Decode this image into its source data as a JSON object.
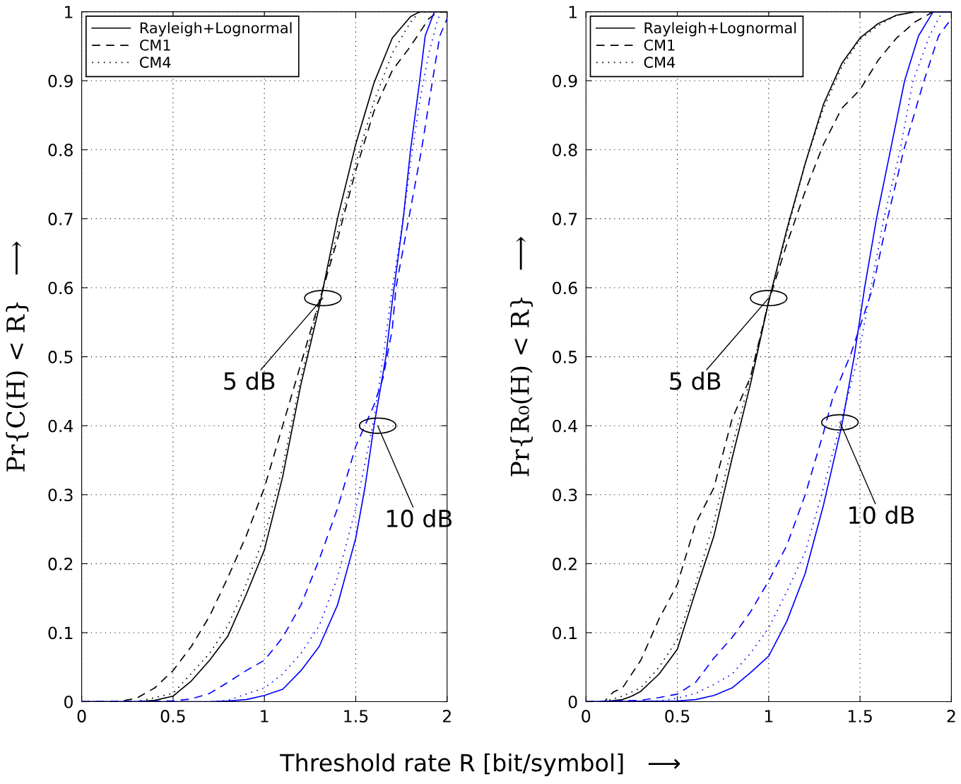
{
  "chart_data": [
    {
      "type": "line",
      "xlabel": "Threshold rate R [bit/symbol]   ⟶",
      "ylabel": "Pr{C(H) < R}   ⟶",
      "xlim": [
        0,
        2
      ],
      "ylim": [
        0,
        1
      ],
      "xticks": [
        0,
        0.5,
        1,
        1.5,
        2
      ],
      "yticks": [
        0,
        0.1,
        0.2,
        0.3,
        0.4,
        0.5,
        0.6,
        0.7,
        0.8,
        0.9,
        1
      ],
      "grid": true,
      "legend": "top left",
      "marker": "none",
      "annotations": [
        {
          "text": "5 dB",
          "x": 1.32,
          "y": 0.585
        },
        {
          "text": "10 dB",
          "x": 1.62,
          "y": 0.4
        }
      ],
      "series": [
        {
          "name": "Rayleigh+Lognormal",
          "color": "#000000",
          "line_style": "solid",
          "x": [
            0,
            0.3,
            0.4,
            0.5,
            0.6,
            0.7,
            0.8,
            0.9,
            1.0,
            1.1,
            1.2,
            1.3,
            1.4,
            1.5,
            1.6,
            1.7,
            1.8,
            1.85,
            2
          ],
          "values": [
            0,
            0,
            0.002,
            0.008,
            0.03,
            0.06,
            0.095,
            0.155,
            0.22,
            0.326,
            0.46,
            0.572,
            0.7,
            0.808,
            0.897,
            0.962,
            0.993,
            1,
            1
          ]
        },
        {
          "name": "CM1",
          "color": "#000000",
          "line_style": "dashed",
          "x": [
            0,
            0.2,
            0.3,
            0.4,
            0.5,
            0.6,
            0.7,
            0.8,
            0.9,
            1.0,
            1.1,
            1.2,
            1.3,
            1.4,
            1.5,
            1.6,
            1.7,
            1.8,
            1.85,
            1.9,
            1.95,
            2
          ],
          "values": [
            0,
            0,
            0.005,
            0.02,
            0.045,
            0.08,
            0.124,
            0.18,
            0.24,
            0.31,
            0.4,
            0.49,
            0.58,
            0.67,
            0.77,
            0.856,
            0.915,
            0.95,
            0.97,
            0.99,
            1,
            1
          ]
        },
        {
          "name": "CM4",
          "color": "#000000",
          "line_style": "dotted",
          "x": [
            0,
            0.3,
            0.5,
            0.7,
            0.8,
            0.9,
            1.0,
            1.1,
            1.2,
            1.3,
            1.4,
            1.5,
            1.6,
            1.7,
            1.8,
            1.85,
            2
          ],
          "values": [
            0,
            0,
            0.012,
            0.07,
            0.11,
            0.17,
            0.24,
            0.34,
            0.47,
            0.58,
            0.68,
            0.78,
            0.87,
            0.94,
            0.985,
            1,
            1
          ]
        },
        {
          "color": "#0000ff",
          "line_style": "solid",
          "x": [
            0,
            0.7,
            0.8,
            0.9,
            1.0,
            1.1,
            1.2,
            1.3,
            1.4,
            1.5,
            1.55,
            1.6,
            1.665,
            1.7,
            1.76,
            1.8,
            1.85,
            1.88,
            1.93
          ],
          "values": [
            0,
            0,
            0.001,
            0.003,
            0.009,
            0.018,
            0.045,
            0.08,
            0.14,
            0.237,
            0.31,
            0.4,
            0.5,
            0.58,
            0.7,
            0.8,
            0.9,
            0.965,
            1
          ]
        },
        {
          "color": "#0000ff",
          "line_style": "dashed",
          "x": [
            0,
            0.5,
            0.6,
            0.7,
            0.8,
            0.9,
            1.0,
            1.1,
            1.2,
            1.3,
            1.4,
            1.5,
            1.6,
            1.65,
            1.7,
            1.72,
            1.79,
            1.86,
            1.92,
            1.96,
            2
          ],
          "values": [
            0,
            0.001,
            0.004,
            0.012,
            0.028,
            0.045,
            0.06,
            0.093,
            0.14,
            0.206,
            0.28,
            0.37,
            0.43,
            0.47,
            0.54,
            0.6,
            0.7,
            0.8,
            0.9,
            0.965,
            0.99
          ]
        },
        {
          "color": "#0000ff",
          "line_style": "dotted",
          "x": [
            0,
            0.7,
            0.8,
            1.0,
            1.1,
            1.2,
            1.3,
            1.4,
            1.5,
            1.6,
            1.65,
            1.7,
            1.76,
            1.8,
            1.85,
            1.9,
            1.95,
            1.97,
            2
          ],
          "values": [
            0,
            0,
            0.002,
            0.02,
            0.04,
            0.07,
            0.11,
            0.18,
            0.28,
            0.41,
            0.5,
            0.6,
            0.7,
            0.78,
            0.87,
            0.94,
            0.99,
            1,
            1
          ]
        }
      ]
    },
    {
      "type": "line",
      "ylabel": "Pr{R₀(H) < R}   ⟶",
      "xlim": [
        0,
        2
      ],
      "ylim": [
        0,
        1
      ],
      "xticks": [
        0,
        0.5,
        1,
        1.5,
        2
      ],
      "yticks": [
        0,
        0.1,
        0.2,
        0.3,
        0.4,
        0.5,
        0.6,
        0.7,
        0.8,
        0.9,
        1
      ],
      "grid": true,
      "legend": "top left",
      "marker": "none",
      "annotations": [
        {
          "text": "5 dB",
          "x": 1.0,
          "y": 0.585
        },
        {
          "text": "10 dB",
          "x": 1.39,
          "y": 0.405
        }
      ],
      "series": [
        {
          "name": "Rayleigh+Lognormal",
          "color": "#000000",
          "line_style": "solid",
          "x": [
            0,
            0.1,
            0.2,
            0.25,
            0.3,
            0.4,
            0.5,
            0.6,
            0.7,
            0.8,
            0.9,
            1.0,
            1.1,
            1.2,
            1.3,
            1.4,
            1.5,
            1.6,
            1.7,
            1.8,
            2
          ],
          "values": [
            0,
            0,
            0.003,
            0.008,
            0.015,
            0.04,
            0.076,
            0.16,
            0.24,
            0.353,
            0.46,
            0.58,
            0.685,
            0.78,
            0.866,
            0.925,
            0.962,
            0.983,
            0.995,
            1,
            1
          ]
        },
        {
          "name": "CM1",
          "color": "#000000",
          "line_style": "dashed",
          "x": [
            0,
            0.1,
            0.15,
            0.2,
            0.3,
            0.4,
            0.5,
            0.6,
            0.7,
            0.8,
            0.9,
            1.0,
            1.1,
            1.2,
            1.3,
            1.4,
            1.5,
            1.6,
            1.7,
            1.8,
            1.9,
            2
          ],
          "values": [
            0,
            0,
            0.014,
            0.02,
            0.06,
            0.12,
            0.17,
            0.258,
            0.31,
            0.41,
            0.47,
            0.58,
            0.664,
            0.74,
            0.808,
            0.86,
            0.887,
            0.93,
            0.962,
            0.985,
            1,
            1
          ]
        },
        {
          "name": "CM4",
          "color": "#000000",
          "line_style": "dotted",
          "x": [
            0,
            0.1,
            0.2,
            0.3,
            0.4,
            0.5,
            0.6,
            0.7,
            0.8,
            0.9,
            1.0,
            1.1,
            1.2,
            1.3,
            1.4,
            1.5,
            1.6,
            1.7,
            1.8,
            2
          ],
          "values": [
            0,
            0,
            0.008,
            0.02,
            0.05,
            0.09,
            0.17,
            0.26,
            0.37,
            0.47,
            0.58,
            0.68,
            0.78,
            0.86,
            0.92,
            0.96,
            0.98,
            0.995,
            1,
            1
          ]
        },
        {
          "color": "#0000ff",
          "line_style": "solid",
          "x": [
            0,
            0.5,
            0.6,
            0.7,
            0.8,
            0.9,
            1.0,
            1.1,
            1.2,
            1.3,
            1.4,
            1.468,
            1.525,
            1.59,
            1.667,
            1.744,
            1.82,
            1.9,
            2
          ],
          "values": [
            0,
            0.001,
            0.003,
            0.009,
            0.02,
            0.042,
            0.066,
            0.117,
            0.186,
            0.285,
            0.4,
            0.5,
            0.6,
            0.7,
            0.8,
            0.9,
            0.965,
            1,
            1
          ]
        },
        {
          "color": "#0000ff",
          "line_style": "dashed",
          "x": [
            0,
            0.3,
            0.4,
            0.5,
            0.6,
            0.7,
            0.8,
            0.9,
            1.0,
            1.1,
            1.2,
            1.3,
            1.35,
            1.45,
            1.57,
            1.65,
            1.74,
            1.85,
            1.93,
            2
          ],
          "values": [
            0,
            0.002,
            0.006,
            0.011,
            0.028,
            0.063,
            0.093,
            0.13,
            0.175,
            0.227,
            0.3,
            0.39,
            0.44,
            0.504,
            0.6,
            0.7,
            0.8,
            0.9,
            0.965,
            0.99
          ]
        },
        {
          "color": "#0000ff",
          "line_style": "dotted",
          "x": [
            0,
            0.4,
            0.5,
            0.6,
            0.7,
            0.8,
            0.9,
            1.0,
            1.1,
            1.2,
            1.3,
            1.4,
            1.49,
            1.63,
            1.72,
            1.79,
            1.88,
            1.95,
            2
          ],
          "values": [
            0,
            0.001,
            0.005,
            0.012,
            0.025,
            0.04,
            0.07,
            0.107,
            0.16,
            0.217,
            0.31,
            0.41,
            0.5,
            0.7,
            0.8,
            0.9,
            0.965,
            1,
            1
          ]
        }
      ]
    }
  ]
}
